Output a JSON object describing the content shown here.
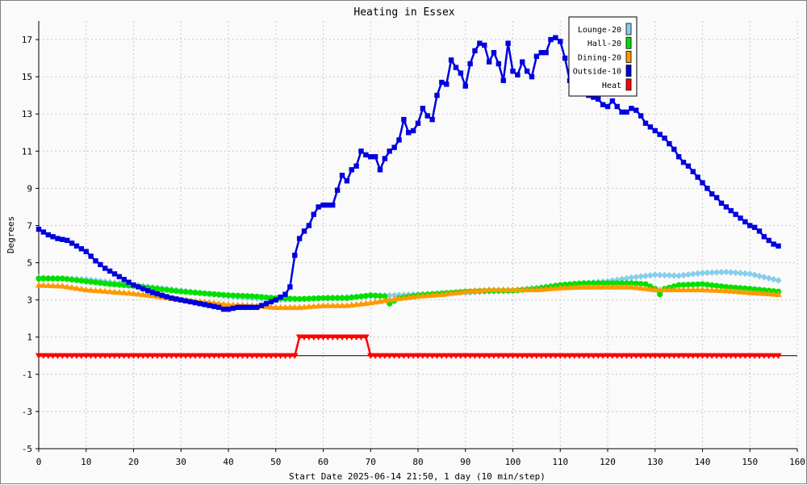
{
  "chart_data": {
    "type": "line",
    "title": "Heating in Essex",
    "xlabel": "Start Date 2025-06-14 21:50, 1 day (10 min/step)",
    "ylabel": "Degrees",
    "xlim": [
      0,
      160
    ],
    "ylim": [
      -5,
      18
    ],
    "x_ticks": [
      0,
      10,
      20,
      30,
      40,
      50,
      60,
      70,
      80,
      90,
      100,
      110,
      120,
      130,
      140,
      150,
      160
    ],
    "y_ticks": [
      -5,
      -3,
      -1,
      1,
      3,
      5,
      7,
      9,
      11,
      13,
      15,
      17
    ],
    "grid": true,
    "legend_position": "top-right",
    "series": [
      {
        "name": "Lounge-20",
        "color": "#87ceeb",
        "marker": "diamond",
        "points": [
          [
            0,
            4.2
          ],
          [
            10,
            4.1
          ],
          [
            20,
            3.8
          ],
          [
            30,
            3.5
          ],
          [
            40,
            3.2
          ],
          [
            50,
            3.0
          ],
          [
            60,
            3.1
          ],
          [
            70,
            3.2
          ],
          [
            80,
            3.3
          ],
          [
            90,
            3.4
          ],
          [
            100,
            3.5
          ],
          [
            110,
            3.8
          ],
          [
            120,
            4.0
          ],
          [
            125,
            4.2
          ],
          [
            130,
            4.35
          ],
          [
            135,
            4.3
          ],
          [
            140,
            4.45
          ],
          [
            145,
            4.5
          ],
          [
            150,
            4.4
          ],
          [
            156,
            4.05
          ]
        ]
      },
      {
        "name": "Hall-20",
        "color": "#00e000",
        "marker": "circle",
        "points": [
          [
            0,
            4.15
          ],
          [
            5,
            4.15
          ],
          [
            10,
            4.0
          ],
          [
            15,
            3.85
          ],
          [
            20,
            3.75
          ],
          [
            25,
            3.6
          ],
          [
            30,
            3.45
          ],
          [
            35,
            3.35
          ],
          [
            40,
            3.25
          ],
          [
            45,
            3.2
          ],
          [
            50,
            3.1
          ],
          [
            55,
            3.05
          ],
          [
            60,
            3.1
          ],
          [
            65,
            3.1
          ],
          [
            70,
            3.25
          ],
          [
            73,
            3.2
          ],
          [
            74,
            2.8
          ],
          [
            76,
            3.1
          ],
          [
            80,
            3.25
          ],
          [
            85,
            3.35
          ],
          [
            90,
            3.45
          ],
          [
            95,
            3.5
          ],
          [
            100,
            3.5
          ],
          [
            105,
            3.6
          ],
          [
            110,
            3.8
          ],
          [
            115,
            3.9
          ],
          [
            120,
            3.9
          ],
          [
            125,
            3.9
          ],
          [
            128,
            3.85
          ],
          [
            130,
            3.6
          ],
          [
            131,
            3.3
          ],
          [
            132,
            3.6
          ],
          [
            135,
            3.8
          ],
          [
            140,
            3.85
          ],
          [
            145,
            3.7
          ],
          [
            150,
            3.6
          ],
          [
            156,
            3.45
          ]
        ]
      },
      {
        "name": "Dining-20",
        "color": "#ff9900",
        "marker": "triangle-up",
        "points": [
          [
            0,
            3.8
          ],
          [
            5,
            3.75
          ],
          [
            10,
            3.55
          ],
          [
            15,
            3.45
          ],
          [
            20,
            3.35
          ],
          [
            25,
            3.2
          ],
          [
            30,
            3.0
          ],
          [
            35,
            2.9
          ],
          [
            40,
            2.75
          ],
          [
            45,
            2.7
          ],
          [
            50,
            2.6
          ],
          [
            55,
            2.6
          ],
          [
            60,
            2.7
          ],
          [
            65,
            2.7
          ],
          [
            70,
            2.85
          ],
          [
            75,
            3.05
          ],
          [
            80,
            3.2
          ],
          [
            85,
            3.3
          ],
          [
            90,
            3.45
          ],
          [
            95,
            3.55
          ],
          [
            100,
            3.55
          ],
          [
            105,
            3.55
          ],
          [
            110,
            3.65
          ],
          [
            115,
            3.7
          ],
          [
            120,
            3.7
          ],
          [
            125,
            3.7
          ],
          [
            130,
            3.55
          ],
          [
            135,
            3.55
          ],
          [
            140,
            3.55
          ],
          [
            145,
            3.5
          ],
          [
            150,
            3.4
          ],
          [
            156,
            3.3
          ]
        ]
      },
      {
        "name": "Outside-10",
        "color": "#0000dd",
        "marker": "square",
        "points": [
          [
            0,
            6.8
          ],
          [
            2,
            6.5
          ],
          [
            4,
            6.3
          ],
          [
            6,
            6.2
          ],
          [
            8,
            5.9
          ],
          [
            10,
            5.6
          ],
          [
            12,
            5.1
          ],
          [
            14,
            4.7
          ],
          [
            16,
            4.4
          ],
          [
            18,
            4.1
          ],
          [
            20,
            3.8
          ],
          [
            22,
            3.6
          ],
          [
            24,
            3.4
          ],
          [
            26,
            3.25
          ],
          [
            28,
            3.1
          ],
          [
            30,
            3.0
          ],
          [
            32,
            2.9
          ],
          [
            34,
            2.8
          ],
          [
            36,
            2.7
          ],
          [
            38,
            2.6
          ],
          [
            39,
            2.5
          ],
          [
            40,
            2.5
          ],
          [
            42,
            2.6
          ],
          [
            44,
            2.6
          ],
          [
            46,
            2.6
          ],
          [
            48,
            2.8
          ],
          [
            50,
            3.0
          ],
          [
            52,
            3.3
          ],
          [
            53,
            3.7
          ],
          [
            54,
            5.4
          ],
          [
            55,
            6.3
          ],
          [
            56,
            6.7
          ],
          [
            57,
            7.0
          ],
          [
            58,
            7.6
          ],
          [
            59,
            8.0
          ],
          [
            60,
            8.1
          ],
          [
            62,
            8.1
          ],
          [
            63,
            8.9
          ],
          [
            64,
            9.7
          ],
          [
            65,
            9.4
          ],
          [
            66,
            10.0
          ],
          [
            67,
            10.2
          ],
          [
            68,
            11.0
          ],
          [
            69,
            10.8
          ],
          [
            70,
            10.7
          ],
          [
            71,
            10.7
          ],
          [
            72,
            10.0
          ],
          [
            73,
            10.6
          ],
          [
            74,
            11.0
          ],
          [
            75,
            11.2
          ],
          [
            76,
            11.6
          ],
          [
            77,
            12.7
          ],
          [
            78,
            12.0
          ],
          [
            79,
            12.1
          ],
          [
            80,
            12.5
          ],
          [
            81,
            13.3
          ],
          [
            82,
            12.9
          ],
          [
            83,
            12.7
          ],
          [
            84,
            14.0
          ],
          [
            85,
            14.7
          ],
          [
            86,
            14.6
          ],
          [
            87,
            15.9
          ],
          [
            88,
            15.5
          ],
          [
            89,
            15.2
          ],
          [
            90,
            14.5
          ],
          [
            91,
            15.7
          ],
          [
            92,
            16.4
          ],
          [
            93,
            16.8
          ],
          [
            94,
            16.7
          ],
          [
            95,
            15.8
          ],
          [
            96,
            16.3
          ],
          [
            97,
            15.7
          ],
          [
            98,
            14.8
          ],
          [
            99,
            16.8
          ],
          [
            100,
            15.3
          ],
          [
            101,
            15.1
          ],
          [
            102,
            15.8
          ],
          [
            103,
            15.3
          ],
          [
            104,
            15.0
          ],
          [
            105,
            16.1
          ],
          [
            106,
            16.3
          ],
          [
            107,
            16.3
          ],
          [
            108,
            17.0
          ],
          [
            109,
            17.1
          ],
          [
            110,
            16.9
          ],
          [
            111,
            16.0
          ],
          [
            112,
            14.8
          ],
          [
            114,
            14.3
          ],
          [
            116,
            14.0
          ],
          [
            118,
            13.8
          ],
          [
            119,
            13.5
          ],
          [
            120,
            13.4
          ],
          [
            121,
            13.7
          ],
          [
            122,
            13.4
          ],
          [
            123,
            13.1
          ],
          [
            124,
            13.1
          ],
          [
            125,
            13.3
          ],
          [
            126,
            13.2
          ],
          [
            127,
            12.9
          ],
          [
            128,
            12.5
          ],
          [
            129,
            12.3
          ],
          [
            130,
            12.1
          ],
          [
            131,
            11.9
          ],
          [
            132,
            11.7
          ],
          [
            133,
            11.4
          ],
          [
            134,
            11.1
          ],
          [
            135,
            10.7
          ],
          [
            136,
            10.4
          ],
          [
            137,
            10.2
          ],
          [
            138,
            9.9
          ],
          [
            139,
            9.6
          ],
          [
            140,
            9.3
          ],
          [
            141,
            9.0
          ],
          [
            142,
            8.7
          ],
          [
            143,
            8.5
          ],
          [
            144,
            8.2
          ],
          [
            145,
            8.0
          ],
          [
            146,
            7.8
          ],
          [
            147,
            7.6
          ],
          [
            148,
            7.4
          ],
          [
            149,
            7.2
          ],
          [
            150,
            7.0
          ],
          [
            151,
            6.9
          ],
          [
            152,
            6.7
          ],
          [
            153,
            6.4
          ],
          [
            154,
            6.2
          ],
          [
            155,
            6.0
          ],
          [
            156,
            5.9
          ]
        ]
      },
      {
        "name": "Heat",
        "color": "#ff0000",
        "marker": "triangle-down",
        "points": [
          [
            0,
            0
          ],
          [
            54,
            0
          ],
          [
            55,
            1
          ],
          [
            69,
            1
          ],
          [
            70,
            0
          ],
          [
            156,
            0
          ]
        ]
      }
    ]
  }
}
